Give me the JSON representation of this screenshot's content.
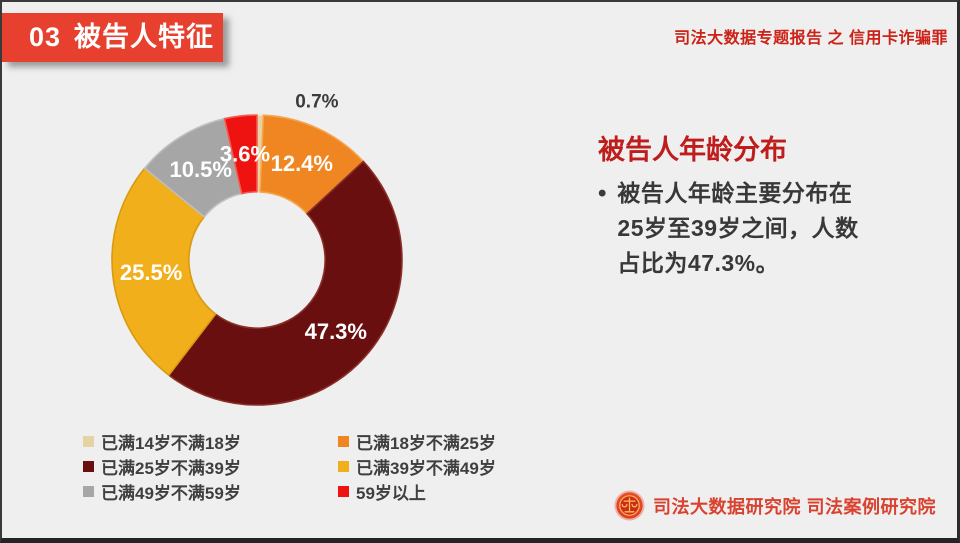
{
  "header": {
    "section_number": "03",
    "section_title": "被告人特征",
    "report_title": "司法大数据专题报告 之 信用卡诈骗罪"
  },
  "panel": {
    "title": "被告人年龄分布",
    "bullet_lines": [
      "被告人年龄主要分布在",
      "25岁至39岁之间，人数",
      "占比为47.3%。"
    ]
  },
  "footer": {
    "emblem_icon": "court-emblem",
    "org_text": "司法大数据研究院 司法案例研究院"
  },
  "colors": {
    "background": "#efeff0",
    "banner_red": "#e7402e",
    "header_text_red": "#cb2318",
    "panel_title_red": "#bf1d1b",
    "body_text": "#383838",
    "legend_text": "#3f3f3f",
    "footer_red": "#d8422e",
    "inside_label": "#ffffff",
    "outside_label": "#3b3b3b"
  },
  "chart_data": {
    "type": "pie",
    "subtype": "donut",
    "title": "被告人年龄分布",
    "unit": "%",
    "start_angle_deg": 0,
    "direction": "clockwise",
    "inner_radius_ratio": 0.47,
    "legend_position": "bottom-left",
    "slices": [
      {
        "label": "已满14岁不满18岁",
        "value": 0.7,
        "pct_label": "0.7%",
        "color": "#e6d3a3",
        "border": "#f0e4c4",
        "label_inside": false
      },
      {
        "label": "已满18岁不满25岁",
        "value": 12.4,
        "pct_label": "12.4%",
        "color": "#ef8621",
        "border": "#f6a551",
        "label_inside": true
      },
      {
        "label": "已满25岁不满39岁",
        "value": 47.3,
        "pct_label": "47.3%",
        "color": "#6a0f10",
        "border": "#8a2f28",
        "label_inside": true
      },
      {
        "label": "已满39岁不满49岁",
        "value": 25.5,
        "pct_label": "25.5%",
        "color": "#f1b01b",
        "border": "#d89a10",
        "label_inside": true
      },
      {
        "label": "已满49岁不满59岁",
        "value": 10.5,
        "pct_label": "10.5%",
        "color": "#a6a6a6",
        "border": "#bfbfbf",
        "label_inside": true
      },
      {
        "label": "59岁以上",
        "value": 3.6,
        "pct_label": "3.6%",
        "color": "#ee1310",
        "border": "#f55a50",
        "label_inside": true
      }
    ]
  }
}
